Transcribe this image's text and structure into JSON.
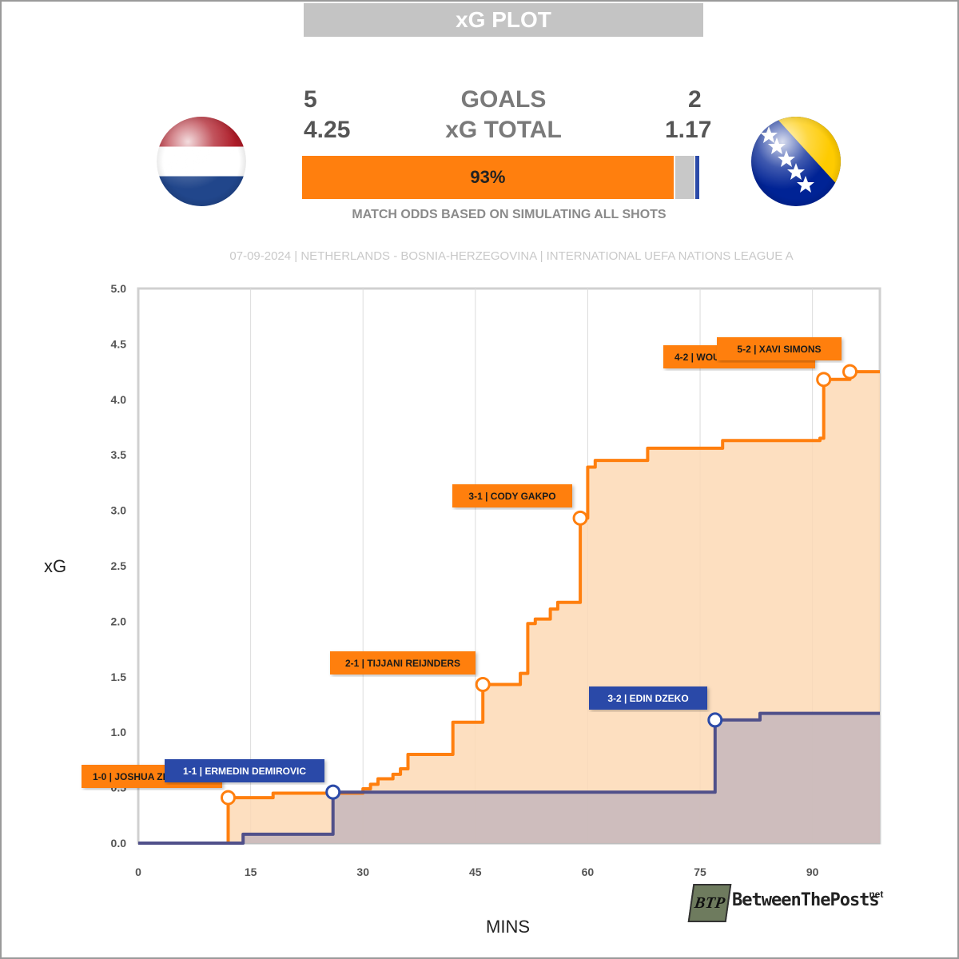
{
  "header": {
    "title": "xG PLOT"
  },
  "teams": {
    "home": {
      "goals": "5",
      "xg_total": "4.25",
      "color": "#ff7f0e",
      "flag_icon": "netherlands-flag-icon"
    },
    "away": {
      "goals": "2",
      "xg_total": "1.17",
      "color": "#2b4aa8",
      "flag_icon": "bosnia-herzegovina-flag-icon"
    }
  },
  "labels": {
    "goals": "GOALS",
    "xg_total": "xG TOTAL"
  },
  "odds": {
    "home_pct": 93,
    "draw_pct": 5,
    "away_pct": 1,
    "home_label": "93%",
    "caption": "MATCH ODDS BASED ON SIMULATING ALL SHOTS"
  },
  "match_info": "07-09-2024 | NETHERLANDS - BOSNIA-HERZEGOVINA | INTERNATIONAL UEFA NATIONS LEAGUE A",
  "logo": {
    "text": "BetweenThePosts",
    "suffix": ".net",
    "badge": "BTP"
  },
  "chart_data": {
    "type": "area",
    "xlabel": "MINS",
    "ylabel": "xG",
    "xlim": [
      0,
      99
    ],
    "ylim": [
      0,
      5
    ],
    "x_ticks": [
      0,
      15,
      30,
      45,
      60,
      75,
      90
    ],
    "y_ticks": [
      "0.0",
      "0.5",
      "1.0",
      "1.5",
      "2.0",
      "2.5",
      "3.0",
      "3.5",
      "4.0",
      "4.5",
      "5.0"
    ],
    "grid": true,
    "series": [
      {
        "team": "home",
        "color": "#ff7f0e",
        "fill": "#fdd9b5",
        "steps": [
          [
            0,
            0
          ],
          [
            12,
            0
          ],
          [
            12,
            0.41
          ],
          [
            18,
            0.41
          ],
          [
            18,
            0.45
          ],
          [
            30,
            0.45
          ],
          [
            30,
            0.49
          ],
          [
            31,
            0.49
          ],
          [
            31,
            0.53
          ],
          [
            32,
            0.53
          ],
          [
            32,
            0.58
          ],
          [
            34,
            0.58
          ],
          [
            34,
            0.62
          ],
          [
            35,
            0.62
          ],
          [
            35,
            0.67
          ],
          [
            36,
            0.67
          ],
          [
            36,
            0.8
          ],
          [
            42,
            0.8
          ],
          [
            42,
            1.09
          ],
          [
            46,
            1.09
          ],
          [
            46,
            1.43
          ],
          [
            51,
            1.43
          ],
          [
            51,
            1.53
          ],
          [
            52,
            1.53
          ],
          [
            52,
            1.98
          ],
          [
            53,
            1.98
          ],
          [
            53,
            2.02
          ],
          [
            55,
            2.02
          ],
          [
            55,
            2.11
          ],
          [
            56,
            2.11
          ],
          [
            56,
            2.17
          ],
          [
            59,
            2.17
          ],
          [
            59,
            2.93
          ],
          [
            60,
            2.93
          ],
          [
            60,
            3.39
          ],
          [
            61,
            3.39
          ],
          [
            61,
            3.45
          ],
          [
            68,
            3.45
          ],
          [
            68,
            3.56
          ],
          [
            78,
            3.56
          ],
          [
            78,
            3.63
          ],
          [
            91,
            3.63
          ],
          [
            91,
            3.65
          ],
          [
            91.5,
            3.65
          ],
          [
            91.5,
            4.18
          ],
          [
            95,
            4.18
          ],
          [
            95,
            4.25
          ],
          [
            99,
            4.25
          ]
        ],
        "goals": [
          {
            "minute": 12,
            "xg": 0.41,
            "label": "1-0 | JOSHUA ZIRKZEE"
          },
          {
            "minute": 46,
            "xg": 1.43,
            "label": "2-1 | TIJJANI REIJNDERS"
          },
          {
            "minute": 59,
            "xg": 2.93,
            "label": "3-1 | CODY GAKPO"
          },
          {
            "minute": 91.5,
            "xg": 4.18,
            "label": "4-2 | WOUT WEGHORST"
          },
          {
            "minute": 95,
            "xg": 4.25,
            "label": "5-2 | XAVI SIMONS"
          }
        ]
      },
      {
        "team": "away",
        "color": "#50508a",
        "fill": "#c5b7bc",
        "steps": [
          [
            0,
            0
          ],
          [
            14,
            0
          ],
          [
            14,
            0.08
          ],
          [
            26,
            0.08
          ],
          [
            26,
            0.46
          ],
          [
            77,
            0.46
          ],
          [
            77,
            1.11
          ],
          [
            83,
            1.11
          ],
          [
            83,
            1.17
          ],
          [
            99,
            1.17
          ]
        ],
        "goals": [
          {
            "minute": 26,
            "xg": 0.46,
            "label": "1-1 | ERMEDIN DEMIROVIC"
          },
          {
            "minute": 77,
            "xg": 1.11,
            "label": "3-2 | EDIN DZEKO"
          }
        ]
      }
    ]
  }
}
